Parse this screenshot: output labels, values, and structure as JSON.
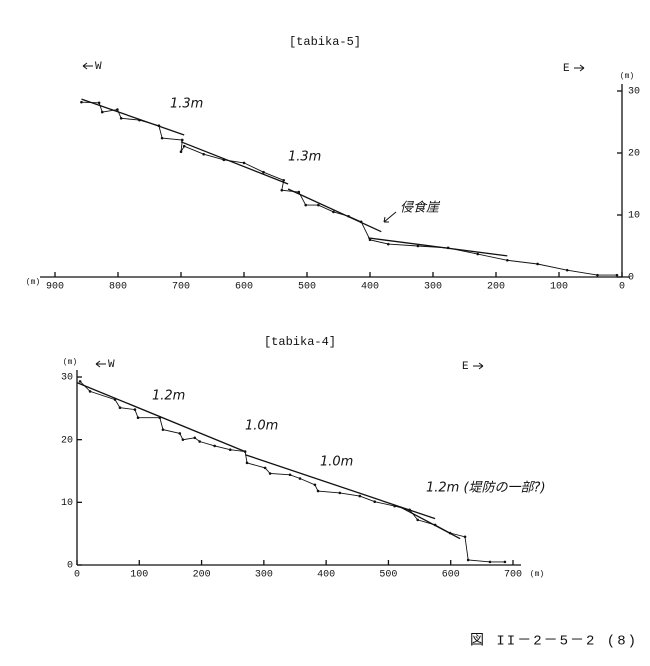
{
  "chart_data": [
    {
      "type": "line",
      "title": "[tabika-5]",
      "west": "W",
      "east": "E",
      "x_unit": "(m)",
      "y_unit": "(m)",
      "y_axis_side": "right",
      "xlim": [
        900,
        0
      ],
      "ylim": [
        0,
        30
      ],
      "xticks": [
        900,
        800,
        700,
        600,
        500,
        400,
        300,
        200,
        100,
        0
      ],
      "yticks": [
        0,
        10,
        20,
        30
      ],
      "series": [
        {
          "color": "#111111",
          "x": [
            858,
            830,
            825,
            801,
            795,
            766,
            735,
            730,
            698,
            700,
            695,
            664,
            632,
            600,
            569,
            537,
            540,
            513,
            502,
            482,
            458,
            434,
            414,
            400,
            371,
            324,
            276,
            229,
            182,
            134,
            87,
            39,
            8
          ],
          "values": [
            28.2,
            28.1,
            26.6,
            27,
            25.6,
            25.3,
            24.4,
            22.4,
            22.1,
            20.2,
            21.1,
            19.8,
            18.9,
            18.4,
            16.9,
            15.6,
            14,
            13.7,
            11.6,
            11.6,
            10.5,
            9.8,
            8.9,
            6,
            5.3,
            5,
            4.7,
            3.7,
            2.7,
            2.1,
            1.1,
            0.3,
            0.3
          ]
        },
        {
          "color": "#111111",
          "x": [
            858,
            695
          ],
          "values": [
            28.7,
            22.9
          ]
        },
        {
          "color": "#111111",
          "x": [
            700,
            530
          ],
          "values": [
            21.8,
            15
          ]
        },
        {
          "color": "#111111",
          "x": [
            530,
            382
          ],
          "values": [
            14.2,
            7.3
          ]
        },
        {
          "color": "#111111",
          "x": [
            403,
            182
          ],
          "values": [
            6.3,
            3.4
          ]
        }
      ],
      "annotations": [
        "1.3m",
        "1.3m",
        "侵食崖"
      ]
    },
    {
      "type": "line",
      "title": "[tabika-4]",
      "west": "W",
      "east": "E",
      "x_unit": "(m)",
      "y_unit": "(m)",
      "y_axis_side": "left",
      "xlim": [
        0,
        700
      ],
      "ylim": [
        0,
        30
      ],
      "xticks": [
        0,
        100,
        200,
        300,
        400,
        500,
        600,
        700
      ],
      "yticks": [
        0,
        10,
        20,
        30
      ],
      "series": [
        {
          "color": "#111111",
          "x": [
            5,
            21,
            61,
            69,
            93,
            98,
            133,
            138,
            165,
            170,
            189,
            197,
            221,
            246,
            270,
            273,
            302,
            310,
            342,
            358,
            382,
            387,
            422,
            454,
            478,
            510,
            534,
            547,
            575,
            599,
            623,
            628,
            663,
            687
          ],
          "values": [
            29.3,
            27.7,
            26.4,
            25.1,
            24.8,
            23.5,
            23.5,
            21.6,
            21,
            20,
            20.3,
            19.7,
            19,
            18.4,
            18.1,
            16.3,
            15.5,
            14.6,
            14.4,
            13.8,
            12.8,
            11.8,
            11.5,
            11,
            10.1,
            9.4,
            8.8,
            7.2,
            6.4,
            5.1,
            4.5,
            0.8,
            0.5,
            0.5
          ]
        },
        {
          "color": "#111111",
          "x": [
            0,
            270
          ],
          "values": [
            29.1,
            18.1
          ]
        },
        {
          "color": "#111111",
          "x": [
            270,
            575
          ],
          "values": [
            17.6,
            7.4
          ]
        },
        {
          "color": "#111111",
          "x": [
            520,
            615
          ],
          "values": [
            9.2,
            4.2
          ]
        }
      ],
      "annotations": [
        "1.2m",
        "1.0m",
        "1.0m",
        "1.2m (堤防の一部?)"
      ]
    }
  ],
  "caption": "図 II－2－5－2 (8)"
}
